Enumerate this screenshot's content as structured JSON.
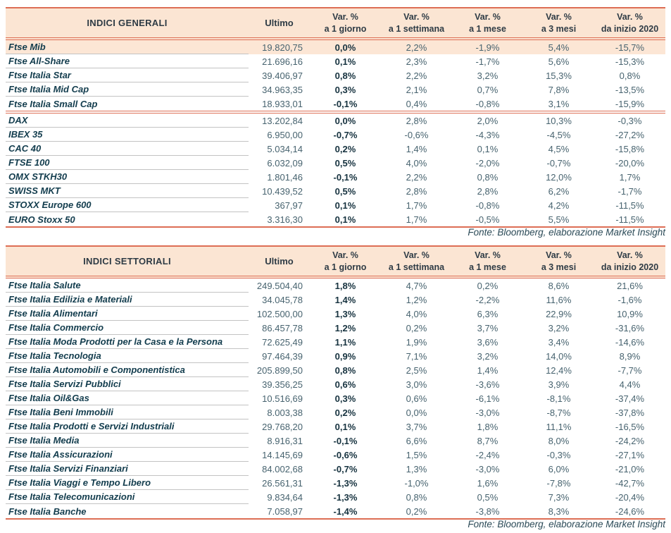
{
  "colors": {
    "accent_border": "#DD6E55",
    "header_bg": "#FBE5D3",
    "highlight_row_bg": "#FCE6D5",
    "name_text": "#123C4D",
    "value_text": "#47636F",
    "row_divider": "#C3C3C3"
  },
  "source_note": "Fonte: Bloomberg, elaborazione Market Insight",
  "tables": [
    {
      "title": "INDICI GENERALI",
      "ultimo_label": "Ultimo",
      "var_headers": [
        {
          "line1": "Var. %",
          "line2": "a 1 giorno"
        },
        {
          "line1": "Var. %",
          "line2": "a 1 settimana"
        },
        {
          "line1": "Var. %",
          "line2": "a 1 mese"
        },
        {
          "line1": "Var. %",
          "line2": "a 3 mesi"
        },
        {
          "line1": "Var. %",
          "line2": "da inizio 2020"
        }
      ],
      "groups": [
        {
          "rows": [
            {
              "name": "Ftse Mib",
              "ultimo": "19.820,75",
              "vars": [
                "0,0%",
                "2,2%",
                "-1,9%",
                "5,4%",
                "-15,7%"
              ],
              "highlight": true
            },
            {
              "name": "Ftse All-Share",
              "ultimo": "21.696,16",
              "vars": [
                "0,1%",
                "2,3%",
                "-1,7%",
                "5,6%",
                "-15,3%"
              ]
            },
            {
              "name": "Ftse Italia Star",
              "ultimo": "39.406,97",
              "vars": [
                "0,8%",
                "2,2%",
                "3,2%",
                "15,3%",
                "0,8%"
              ]
            },
            {
              "name": "Ftse Italia Mid Cap",
              "ultimo": "34.963,35",
              "vars": [
                "0,3%",
                "2,1%",
                "0,7%",
                "7,8%",
                "-13,5%"
              ]
            },
            {
              "name": "Ftse Italia Small Cap",
              "ultimo": "18.933,01",
              "vars": [
                "-0,1%",
                "0,4%",
                "-0,8%",
                "3,1%",
                "-15,9%"
              ]
            }
          ]
        },
        {
          "rows": [
            {
              "name": "DAX",
              "ultimo": "13.202,84",
              "vars": [
                "0,0%",
                "2,8%",
                "2,0%",
                "10,3%",
                "-0,3%"
              ]
            },
            {
              "name": "IBEX 35",
              "ultimo": "6.950,00",
              "vars": [
                "-0,7%",
                "-0,6%",
                "-4,3%",
                "-4,5%",
                "-27,2%"
              ]
            },
            {
              "name": "CAC 40",
              "ultimo": "5.034,14",
              "vars": [
                "0,2%",
                "1,4%",
                "0,1%",
                "4,5%",
                "-15,8%"
              ]
            },
            {
              "name": "FTSE 100",
              "ultimo": "6.032,09",
              "vars": [
                "0,5%",
                "4,0%",
                "-2,0%",
                "-0,7%",
                "-20,0%"
              ]
            },
            {
              "name": "OMX STKH30",
              "ultimo": "1.801,46",
              "vars": [
                "-0,1%",
                "2,2%",
                "0,8%",
                "12,0%",
                "1,7%"
              ]
            },
            {
              "name": "SWISS MKT",
              "ultimo": "10.439,52",
              "vars": [
                "0,5%",
                "2,8%",
                "2,8%",
                "6,2%",
                "-1,7%"
              ]
            },
            {
              "name": "STOXX Europe 600",
              "ultimo": "367,97",
              "vars": [
                "0,1%",
                "1,7%",
                "-0,8%",
                "4,2%",
                "-11,5%"
              ]
            },
            {
              "name": "EURO Stoxx 50",
              "ultimo": "3.316,30",
              "vars": [
                "0,1%",
                "1,7%",
                "-0,5%",
                "5,5%",
                "-11,5%"
              ]
            }
          ]
        }
      ],
      "fonte": "Fonte: Bloomberg, elaborazione Market Insight"
    },
    {
      "title": "INDICI SETTORIALI",
      "ultimo_label": "Ultimo",
      "var_headers": [
        {
          "line1": "Var. %",
          "line2": "a 1 giorno"
        },
        {
          "line1": "Var. %",
          "line2": "a 1 settimana"
        },
        {
          "line1": "Var. %",
          "line2": "a 1 mese"
        },
        {
          "line1": "Var. %",
          "line2": "a 3 mesi"
        },
        {
          "line1": "Var. %",
          "line2": "da inizio 2020"
        }
      ],
      "groups": [
        {
          "rows": [
            {
              "name": "Ftse Italia Salute",
              "ultimo": "249.504,40",
              "vars": [
                "1,8%",
                "4,7%",
                "0,2%",
                "8,6%",
                "21,6%"
              ]
            },
            {
              "name": "Ftse Italia Edilizia e Materiali",
              "ultimo": "34.045,78",
              "vars": [
                "1,4%",
                "1,2%",
                "-2,2%",
                "11,6%",
                "-1,6%"
              ]
            },
            {
              "name": "Ftse Italia Alimentari",
              "ultimo": "102.500,00",
              "vars": [
                "1,3%",
                "4,0%",
                "6,3%",
                "22,9%",
                "10,9%"
              ]
            },
            {
              "name": "Ftse Italia Commercio",
              "ultimo": "86.457,78",
              "vars": [
                "1,2%",
                "0,2%",
                "3,7%",
                "3,2%",
                "-31,6%"
              ]
            },
            {
              "name": "Ftse Italia Moda Prodotti per la Casa e la Persona",
              "ultimo": "72.625,49",
              "vars": [
                "1,1%",
                "1,9%",
                "3,6%",
                "3,4%",
                "-14,6%"
              ]
            },
            {
              "name": "Ftse Italia Tecnologia",
              "ultimo": "97.464,39",
              "vars": [
                "0,9%",
                "7,1%",
                "3,2%",
                "14,0%",
                "8,9%"
              ]
            },
            {
              "name": "Ftse Italia Automobili e Componentistica",
              "ultimo": "205.899,50",
              "vars": [
                "0,8%",
                "2,5%",
                "1,4%",
                "12,4%",
                "-7,7%"
              ]
            },
            {
              "name": "Ftse Italia Servizi Pubblici",
              "ultimo": "39.356,25",
              "vars": [
                "0,6%",
                "3,0%",
                "-3,6%",
                "3,9%",
                "4,4%"
              ]
            },
            {
              "name": "Ftse Italia Oil&Gas",
              "ultimo": "10.516,69",
              "vars": [
                "0,3%",
                "0,6%",
                "-6,1%",
                "-8,1%",
                "-37,4%"
              ]
            },
            {
              "name": "Ftse Italia Beni Immobili",
              "ultimo": "8.003,38",
              "vars": [
                "0,2%",
                "0,0%",
                "-3,0%",
                "-8,7%",
                "-37,8%"
              ]
            },
            {
              "name": "Ftse Italia Prodotti e Servizi Industriali",
              "ultimo": "29.768,20",
              "vars": [
                "0,1%",
                "3,7%",
                "1,8%",
                "11,1%",
                "-16,5%"
              ]
            },
            {
              "name": "Ftse Italia Media",
              "ultimo": "8.916,31",
              "vars": [
                "-0,1%",
                "6,6%",
                "8,7%",
                "8,0%",
                "-24,2%"
              ]
            },
            {
              "name": "Ftse Italia Assicurazioni",
              "ultimo": "14.145,69",
              "vars": [
                "-0,6%",
                "1,5%",
                "-2,4%",
                "-0,3%",
                "-27,1%"
              ]
            },
            {
              "name": "Ftse Italia Servizi Finanziari",
              "ultimo": "84.002,68",
              "vars": [
                "-0,7%",
                "1,3%",
                "-3,0%",
                "6,0%",
                "-21,0%"
              ]
            },
            {
              "name": "Ftse Italia Viaggi e Tempo Libero",
              "ultimo": "26.561,31",
              "vars": [
                "-1,3%",
                "-1,0%",
                "1,6%",
                "-7,8%",
                "-42,7%"
              ]
            },
            {
              "name": "Ftse Italia Telecomunicazioni",
              "ultimo": "9.834,64",
              "vars": [
                "-1,3%",
                "0,8%",
                "0,5%",
                "7,3%",
                "-20,4%"
              ]
            },
            {
              "name": "Ftse Italia Banche",
              "ultimo": "7.058,97",
              "vars": [
                "-1,4%",
                "0,2%",
                "-3,8%",
                "8,3%",
                "-24,6%"
              ]
            }
          ]
        }
      ],
      "fonte": "Fonte: Bloomberg, elaborazione Market Insight"
    }
  ]
}
